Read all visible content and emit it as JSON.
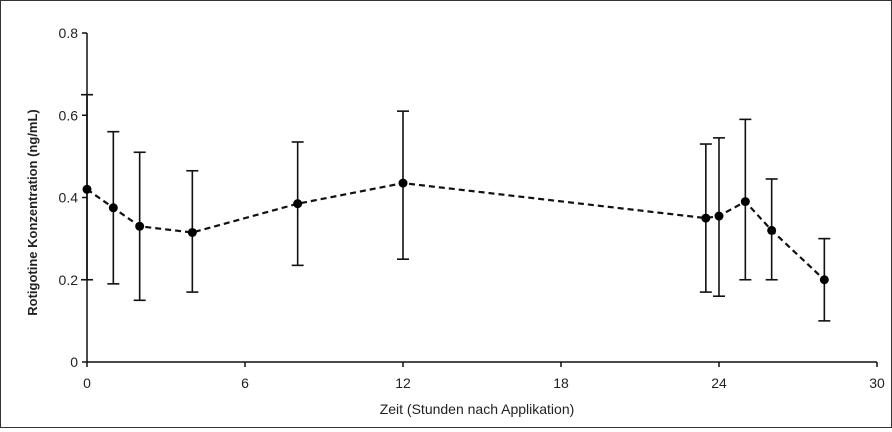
{
  "chart_data": {
    "type": "line",
    "title": "",
    "xlabel": "Zeit (Stunden nach Applikation)",
    "ylabel": "Rotigotine Konzentration (ng/mL)",
    "xlim": [
      0,
      30
    ],
    "ylim": [
      0,
      0.8
    ],
    "x_ticks": [
      "0",
      "6",
      "12",
      "18",
      "24",
      "30"
    ],
    "y_ticks": [
      "0",
      "0.2",
      "0.4",
      "0.6",
      "0.8"
    ],
    "grid": false,
    "legend": "none",
    "line_style": "dashed",
    "line_color": "#111111",
    "series": [
      {
        "points": [
          {
            "x": 0,
            "y": 0.42,
            "err_low": 0.2,
            "err_high": 0.65
          },
          {
            "x": 1,
            "y": 0.375,
            "err_low": 0.19,
            "err_high": 0.56
          },
          {
            "x": 2,
            "y": 0.33,
            "err_low": 0.15,
            "err_high": 0.51
          },
          {
            "x": 4,
            "y": 0.315,
            "err_low": 0.17,
            "err_high": 0.465
          },
          {
            "x": 8,
            "y": 0.385,
            "err_low": 0.235,
            "err_high": 0.535
          },
          {
            "x": 12,
            "y": 0.435,
            "err_low": 0.25,
            "err_high": 0.61
          },
          {
            "x": 23.5,
            "y": 0.35,
            "err_low": 0.17,
            "err_high": 0.53
          },
          {
            "x": 24,
            "y": 0.355,
            "err_low": 0.16,
            "err_high": 0.545
          },
          {
            "x": 25,
            "y": 0.39,
            "err_low": 0.2,
            "err_high": 0.59
          },
          {
            "x": 26,
            "y": 0.32,
            "err_low": 0.2,
            "err_high": 0.445
          },
          {
            "x": 28,
            "y": 0.2,
            "err_low": 0.1,
            "err_high": 0.3
          }
        ]
      }
    ]
  }
}
